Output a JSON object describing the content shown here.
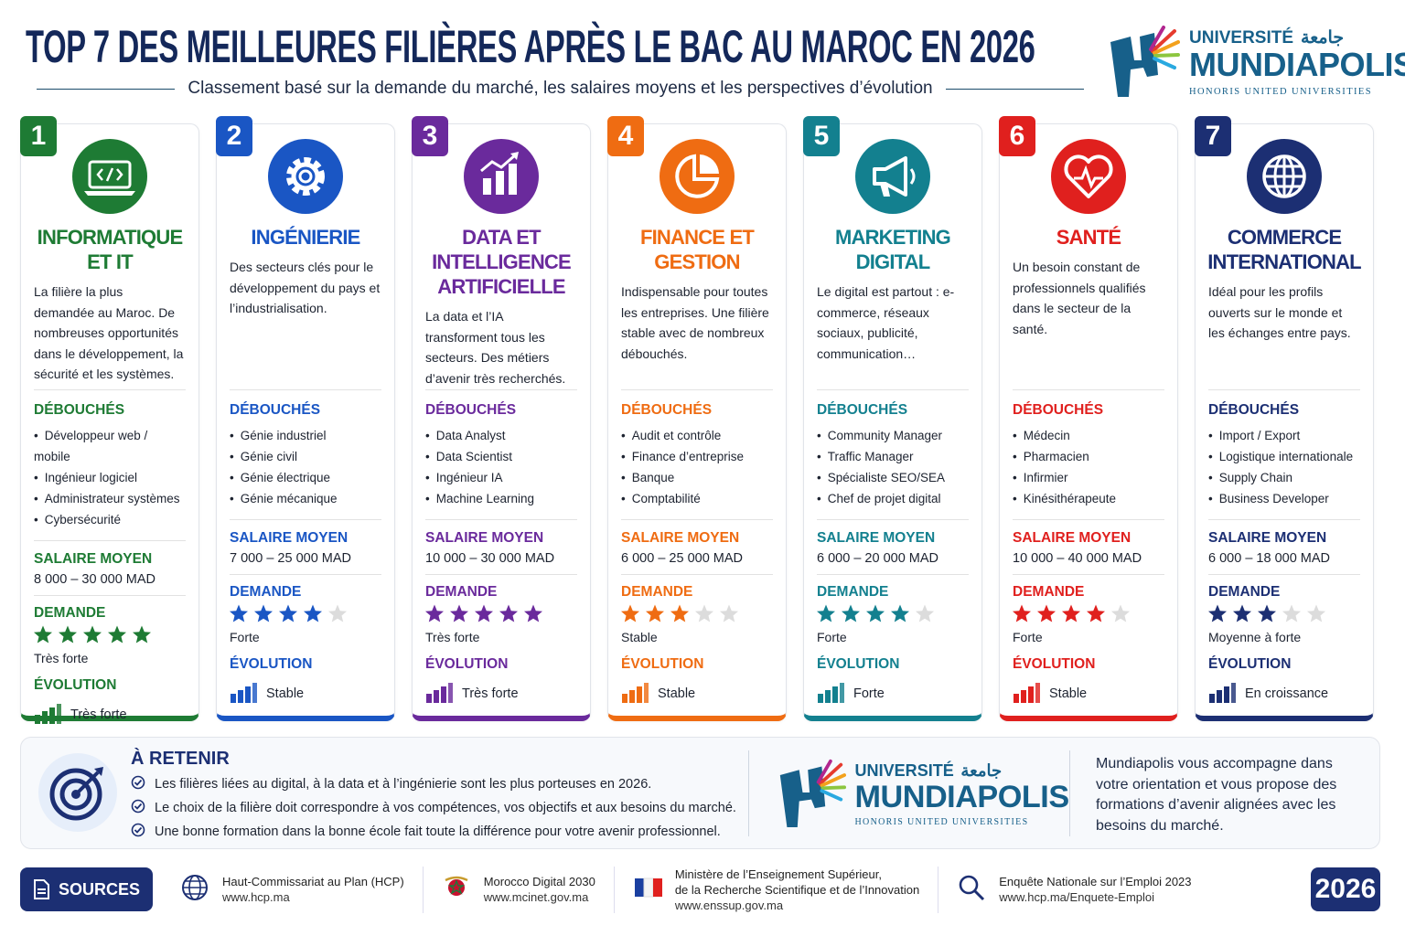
{
  "header": {
    "title": "TOP 7 DES MEILLEURES FILIÈRES APRÈS LE BAC AU MAROC EN 2026",
    "subtitle": "Classement basé sur la demande du marché, les salaires moyens et les perspectives d’évolution"
  },
  "logo": {
    "universite": "UNIVERSITÉ",
    "arabic": "جامعة",
    "name": "MUNDIAPOLIS",
    "tagline": "HONORIS UNITED UNIVERSITIES"
  },
  "labels": {
    "debouches": "DÉBOUCHÉS",
    "salaire": "SALAIRE MOYEN",
    "demande": "DEMANDE",
    "evolution": "ÉVOLUTION"
  },
  "cards": [
    {
      "rank": 1,
      "color": "#1e7b34",
      "title": "INFORMATIQUE ET IT",
      "description": "La filière la plus demandée au Maroc. De nombreuses opportunités dans le développement, la sécurité et les systèmes.",
      "jobs": [
        "Développeur web / mobile",
        "Ingénieur logiciel",
        "Administrateur systèmes",
        "Cybersécurité"
      ],
      "salary": "8 000 – 30 000 MAD",
      "demand_stars": 5,
      "demand": "Très forte",
      "evolution": "Très forte"
    },
    {
      "rank": 2,
      "color": "#1a56c4",
      "title": "INGÉNIERIE",
      "description": "Des secteurs clés pour le développement du pays et l’industrialisation.",
      "jobs": [
        "Génie industriel",
        "Génie civil",
        "Génie électrique",
        "Génie mécanique"
      ],
      "salary": "7 000 – 25 000 MAD",
      "demand_stars": 4,
      "demand": "Forte",
      "evolution": "Stable"
    },
    {
      "rank": 3,
      "color": "#6a2a9c",
      "title": "DATA ET INTELLIGENCE ARTIFICIELLE",
      "description": "La data et l’IA transforment tous les secteurs. Des métiers d’avenir très recherchés.",
      "jobs": [
        "Data Analyst",
        "Data Scientist",
        "Ingénieur IA",
        "Machine Learning"
      ],
      "salary": "10 000 – 30 000 MAD",
      "demand_stars": 5,
      "demand": "Très forte",
      "evolution": "Très forte"
    },
    {
      "rank": 4,
      "color": "#ef6c12",
      "title": "FINANCE ET GESTION",
      "description": "Indispensable pour toutes les entreprises. Une filière stable avec de nombreux débouchés.",
      "jobs": [
        "Audit et contrôle",
        "Finance d’entreprise",
        "Banque",
        "Comptabilité"
      ],
      "salary": "6 000 – 25 000 MAD",
      "demand_stars": 3,
      "demand": "Stable",
      "evolution": "Stable"
    },
    {
      "rank": 5,
      "color": "#13808f",
      "title": "MARKETING DIGITAL",
      "description": "Le digital est partout : e-commerce, réseaux sociaux, publicité, communication…",
      "jobs": [
        "Community Manager",
        "Traffic Manager",
        "Spécialiste SEO/SEA",
        "Chef de projet digital"
      ],
      "salary": "6 000 – 20 000 MAD",
      "demand_stars": 4,
      "demand": "Forte",
      "evolution": "Forte"
    },
    {
      "rank": 6,
      "color": "#e0201e",
      "title": "SANTÉ",
      "description": "Un besoin constant de professionnels qualifiés dans le secteur de la santé.",
      "jobs": [
        "Médecin",
        "Pharmacien",
        "Infirmier",
        "Kinésithérapeute"
      ],
      "salary": "10 000 – 40 000 MAD",
      "demand_stars": 4,
      "demand": "Forte",
      "evolution": "Stable"
    },
    {
      "rank": 7,
      "color": "#1c2f73",
      "title": "COMMERCE INTERNATIONAL",
      "description": "Idéal pour les profils ouverts sur le monde et les échanges entre pays.",
      "jobs": [
        "Import / Export",
        "Logistique internationale",
        "Supply Chain",
        "Business Developer"
      ],
      "salary": "6 000 – 18 000 MAD",
      "demand_stars": 3,
      "demand": "Moyenne à forte",
      "evolution": "En croissance"
    }
  ],
  "retenir": {
    "title": "À RETENIR",
    "items": [
      "Les filières liées au digital, à la data et à l’ingénierie sont les plus porteuses en 2026.",
      "Le choix de la filière doit correspondre à vos compétences, vos objectifs et aux besoins du marché.",
      "Une bonne formation dans la bonne école fait toute la différence pour votre avenir professionnel."
    ],
    "promo": "Mundiapolis vous accompagne dans votre orientation et vous propose des formations d’avenir alignées avec les besoins du marché."
  },
  "sources": {
    "label": "SOURCES",
    "items": [
      {
        "name": [
          "Haut-Commissariat au Plan (HCP)"
        ],
        "url": "www.hcp.ma"
      },
      {
        "name": [
          "Morocco Digital 2030"
        ],
        "url": "www.mcinet.gov.ma"
      },
      {
        "name": [
          "Ministère de l’Enseignement Supérieur,",
          "de la Recherche Scientifique et de l’Innovation"
        ],
        "url": "www.enssup.gov.ma"
      },
      {
        "name": [
          "Enquête Nationale sur l’Emploi 2023"
        ],
        "url": "www.hcp.ma/Enquete-Emploi"
      }
    ],
    "year": 2026
  }
}
